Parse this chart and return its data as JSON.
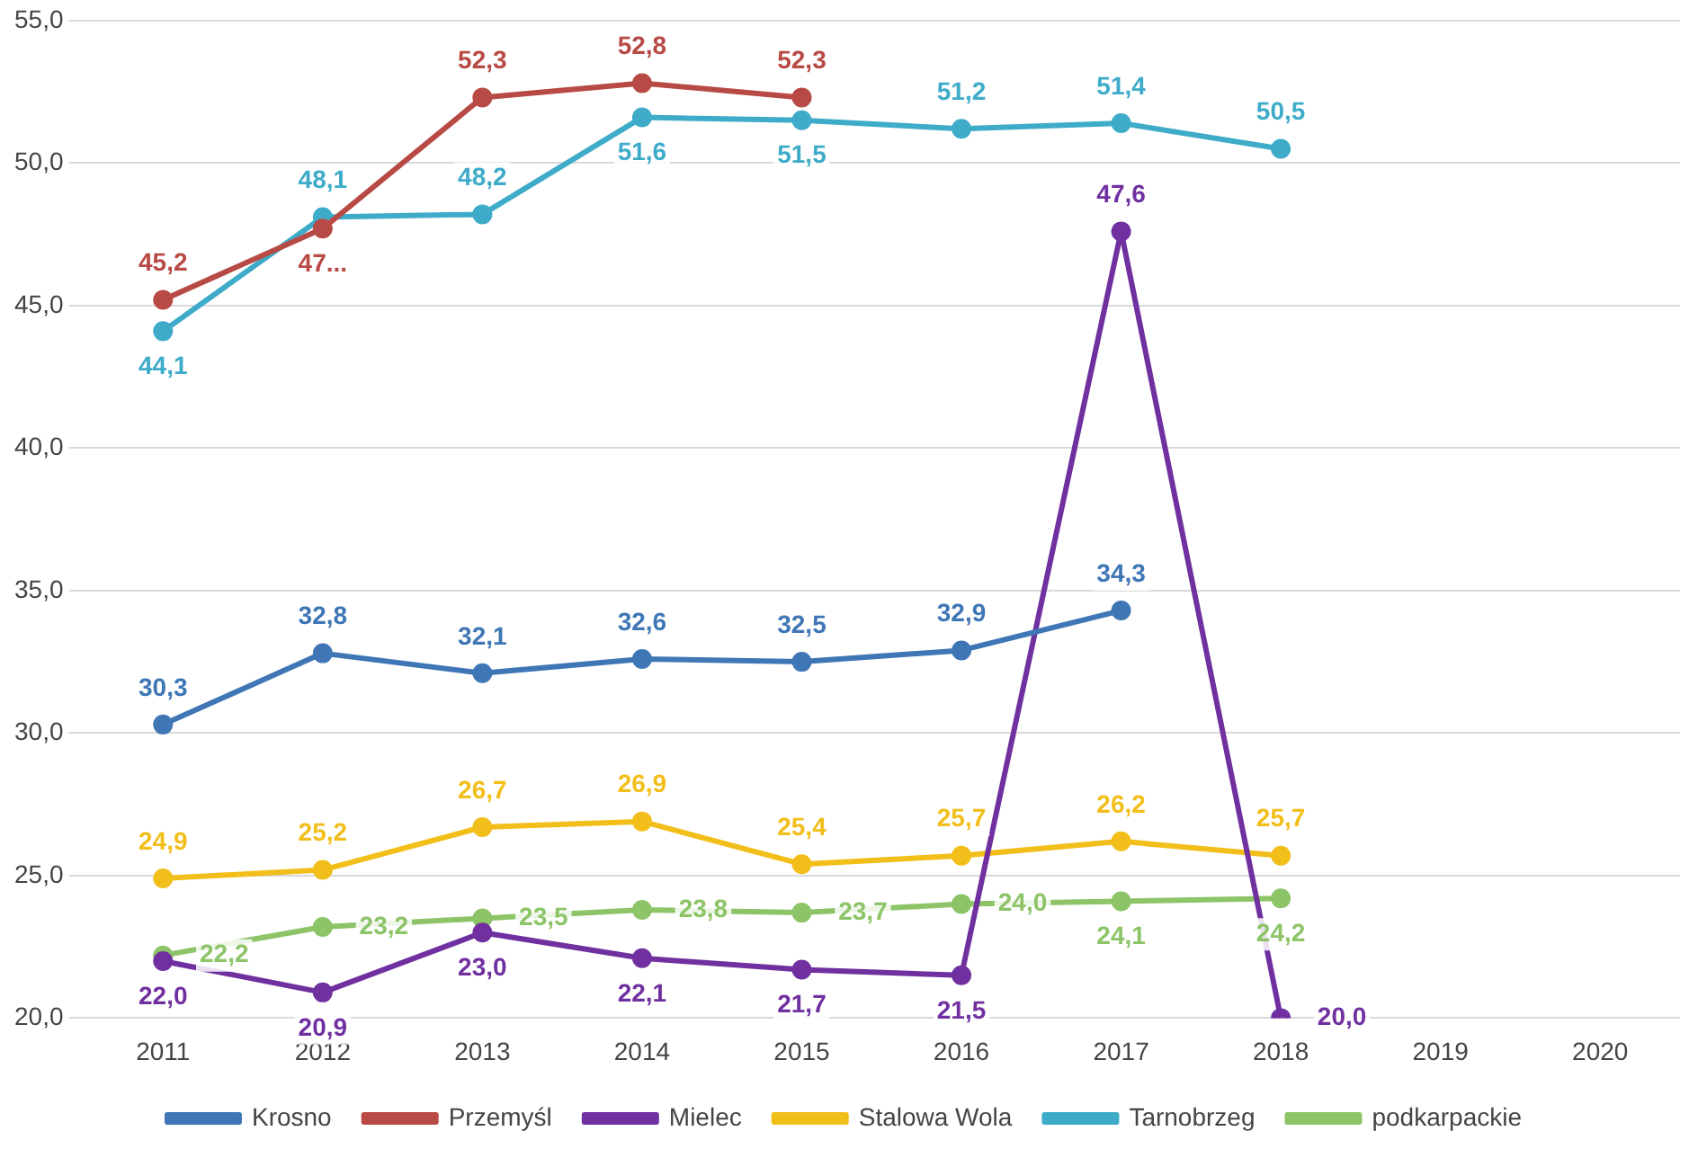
{
  "chart_data": {
    "type": "line",
    "categories": [
      "2011",
      "2012",
      "2013",
      "2014",
      "2015",
      "2016",
      "2017",
      "2018",
      "2019",
      "2020"
    ],
    "ylim": [
      20,
      55
    ],
    "yticks": [
      {
        "value": 20,
        "label": "20,0"
      },
      {
        "value": 25,
        "label": "25,0"
      },
      {
        "value": 30,
        "label": "30,0"
      },
      {
        "value": 35,
        "label": "35,0"
      },
      {
        "value": 40,
        "label": "40,0"
      },
      {
        "value": 45,
        "label": "45,0"
      },
      {
        "value": 50,
        "label": "50,0"
      },
      {
        "value": 55,
        "label": "55,0"
      }
    ],
    "grid": "y",
    "legend": "bottom",
    "marker": "circle",
    "line_style": "solid",
    "series": [
      {
        "name": "Krosno",
        "color": "#3f76b5",
        "values": [
          30.3,
          32.8,
          32.1,
          32.6,
          32.5,
          32.9,
          34.3,
          null,
          null,
          null
        ],
        "value_labels": [
          "30,3",
          "32,8",
          "32,1",
          "32,6",
          "32,5",
          "32,9",
          "34,3",
          null,
          null,
          null
        ]
      },
      {
        "name": "Przemyśl",
        "color": "#b84a45",
        "values": [
          45.2,
          47.7,
          52.3,
          52.8,
          52.3,
          null,
          null,
          null,
          null,
          null
        ],
        "value_labels": [
          "45,2",
          "47...",
          "52,3",
          "52,8",
          "52,3",
          null,
          null,
          null,
          null,
          null
        ]
      },
      {
        "name": "Mielec",
        "color": "#7030a0",
        "values": [
          22.0,
          20.9,
          23.0,
          22.1,
          21.7,
          21.5,
          47.6,
          20.0,
          null,
          null
        ],
        "value_labels": [
          "22,0",
          "20,9",
          "23,0",
          "22,1",
          "21,7",
          "21,5",
          "47,6",
          "20,0",
          null,
          null
        ]
      },
      {
        "name": "Stalowa Wola",
        "color": "#f2be1a",
        "values": [
          24.9,
          25.2,
          26.7,
          26.9,
          25.4,
          25.7,
          26.2,
          25.7,
          null,
          null
        ],
        "value_labels": [
          "24,9",
          "25,2",
          "26,7",
          "26,9",
          "25,4",
          "25,7",
          "26,2",
          "25,7",
          null,
          null
        ]
      },
      {
        "name": "Tarnobrzeg",
        "color": "#3eabc9",
        "values": [
          44.1,
          48.1,
          48.2,
          51.6,
          51.5,
          51.2,
          51.4,
          50.5,
          null,
          null
        ],
        "value_labels": [
          "44,1",
          "48,1",
          "48,2",
          "51,6",
          "51,5",
          "51,2",
          "51,4",
          "50,5",
          null,
          null
        ]
      },
      {
        "name": "podkarpackie",
        "color": "#8cc467",
        "values": [
          22.2,
          23.2,
          23.5,
          23.8,
          23.7,
          24.0,
          24.1,
          24.2,
          null,
          null
        ],
        "value_labels": [
          "22,2",
          "23,2",
          "23,5",
          "23,8",
          "23,7",
          "24,0",
          "24,1",
          "24,2",
          null,
          null
        ]
      }
    ]
  }
}
